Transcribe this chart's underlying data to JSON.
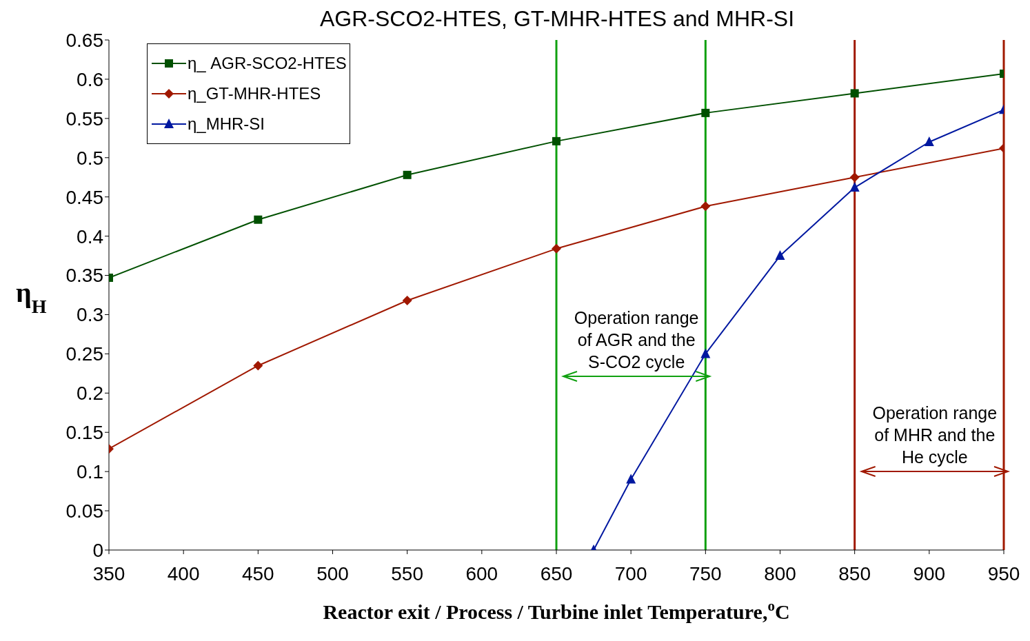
{
  "chart_data": {
    "type": "line",
    "title": "AGR-SCO2-HTES, GT-MHR-HTES and MHR-SI",
    "xlabel": "Reactor exit / Process / Turbine inlet Temperature,$^{o}$C",
    "ylabel": "η$_{H}$",
    "xlim": [
      350,
      950
    ],
    "xticks": [
      350,
      400,
      450,
      500,
      550,
      600,
      650,
      700,
      750,
      800,
      850,
      900,
      950
    ],
    "ylim": [
      0,
      0.65
    ],
    "yticks": [
      0,
      0.05,
      0.1,
      0.15,
      0.2,
      0.25,
      0.3,
      0.35,
      0.4,
      0.45,
      0.5,
      0.55,
      0.6,
      0.65
    ],
    "grid": false,
    "legend": "top left",
    "series": [
      {
        "name": "η_ AGR-SCO2-HTES",
        "color": "#005000",
        "marker": "square",
        "x": [
          350,
          450,
          550,
          650,
          750,
          850,
          950
        ],
        "values": [
          0.347,
          0.421,
          0.478,
          0.521,
          0.557,
          0.582,
          0.607
        ]
      },
      {
        "name": "η_GT-MHR-HTES",
        "color": "#a01800",
        "marker": "diamond",
        "x": [
          350,
          450,
          550,
          650,
          750,
          850,
          950
        ],
        "values": [
          0.129,
          0.235,
          0.318,
          0.384,
          0.438,
          0.475,
          0.512
        ]
      },
      {
        "name": "η_MHR-SI",
        "color": "#0018a0",
        "marker": "triangle",
        "x": [
          675,
          700,
          750,
          800,
          850,
          900,
          950
        ],
        "values": [
          0,
          0.09,
          0.25,
          0.375,
          0.462,
          0.52,
          0.561
        ]
      }
    ],
    "ref_lines": [
      {
        "axis": "x",
        "value": 650,
        "color": "#10a010"
      },
      {
        "axis": "x",
        "value": 750,
        "color": "#10a010"
      },
      {
        "axis": "x",
        "value": 850,
        "color": "#a01800"
      },
      {
        "axis": "x",
        "value": 950,
        "color": "#a01800"
      }
    ],
    "annotations": [
      "Operation range\nof AGR and the\nS-CO2 cycle",
      "Operation range\nof MHR and the\nHe cycle"
    ]
  }
}
